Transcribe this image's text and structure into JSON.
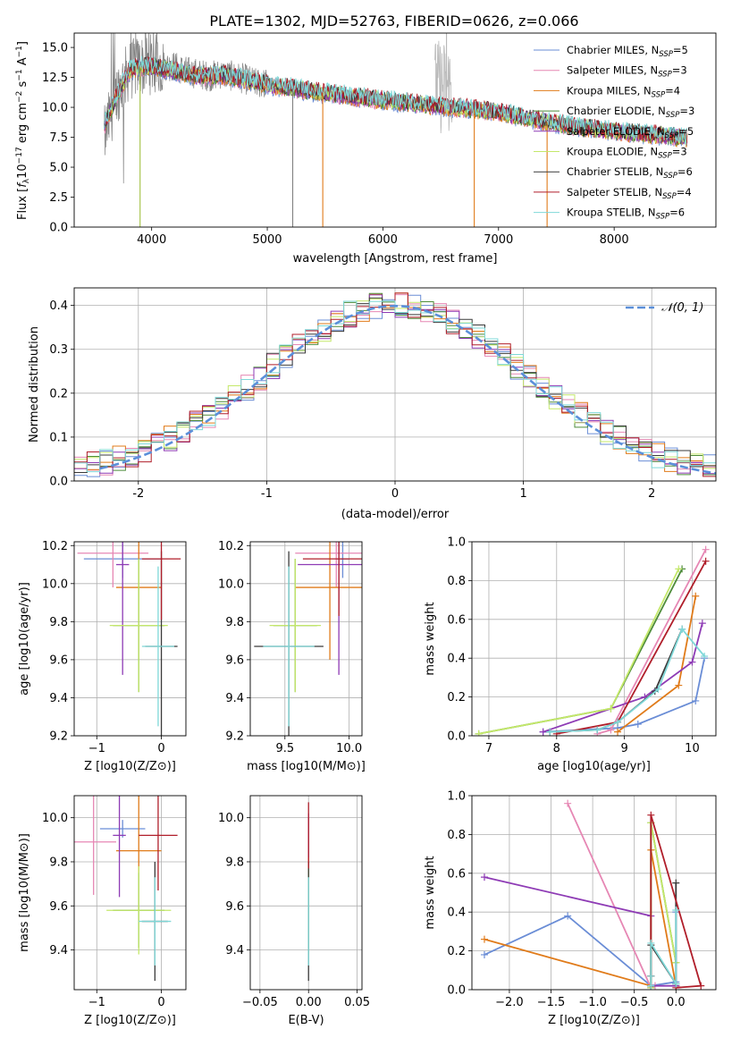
{
  "figure": {
    "title": "PLATE=1302, MJD=52763, FIBERID=0626, z=0.066"
  },
  "legend_labels": [
    "Chabrier MILES, N_SSP=5",
    "Salpeter MILES, N_SSP=3",
    "Kroupa MILES, N_SSP=4",
    "Chabrier ELODIE, N_SSP=3",
    "Salpeter ELODIE, N_SSP=5",
    "Kroupa ELODIE, N_SSP=3",
    "Chabrier STELIB, N_SSP=6",
    "Salpeter STELIB, N_SSP=4",
    "Kroupa STELIB, N_SSP=6"
  ],
  "colors": [
    "#6a8dd6",
    "#e687b4",
    "#e07b1a",
    "#4e8c3a",
    "#8e3bb5",
    "#c4e86a",
    "#3a3a3a",
    "#b01e2a",
    "#7fd8d8"
  ],
  "chart_data": [
    {
      "id": "spectrum",
      "type": "line",
      "title": "PLATE=1302, MJD=52763, FIBERID=0626, z=0.066",
      "xlabel": "wavelength [Angstrom, rest frame]",
      "ylabel": "Flux [f_λ 10^-17 erg cm^-2 s^-1 A^-1]",
      "xlim": [
        3330,
        8880
      ],
      "ylim": [
        0,
        16.2
      ],
      "xticks": [
        4000,
        5000,
        6000,
        7000,
        8000
      ],
      "yticks": [
        0.0,
        2.5,
        5.0,
        7.5,
        10.0,
        12.5,
        15.0
      ],
      "ytick_labels": [
        "0.0",
        "2.5",
        "5.0",
        "7.5",
        "10.0",
        "12.5",
        "15.0"
      ],
      "grid": false,
      "legend": "top-right",
      "data_continuum": {
        "x": [
          3590,
          3700,
          3800,
          3900,
          4000,
          4100,
          4200,
          4300,
          4400,
          4500,
          4600,
          4700,
          4800,
          4900,
          5000,
          5200,
          5400,
          5600,
          5800,
          6000,
          6200,
          6400,
          6600,
          6800,
          7000,
          7200,
          7400,
          7600,
          7800,
          8000,
          8200,
          8400,
          8600
        ],
        "y": [
          7.5,
          11.2,
          13.0,
          13.5,
          13.6,
          13.5,
          13.4,
          13.0,
          12.8,
          12.6,
          12.8,
          12.6,
          12.4,
          12.0,
          12.0,
          11.6,
          11.2,
          11.0,
          10.8,
          10.6,
          10.4,
          10.2,
          10.0,
          9.8,
          9.6,
          9.0,
          8.7,
          8.5,
          8.3,
          8.1,
          7.9,
          7.8,
          7.5
        ]
      },
      "model_continuum": {
        "x": [
          3590,
          3700,
          3800,
          3900,
          4000,
          4200,
          4400,
          4600,
          4800,
          5000,
          5500,
          6000,
          6500,
          7000,
          7500,
          8000,
          8500,
          8600
        ],
        "y": [
          8.5,
          11.0,
          13.0,
          13.4,
          13.4,
          13.0,
          12.6,
          12.7,
          12.3,
          11.9,
          11.2,
          10.6,
          10.1,
          9.6,
          8.6,
          8.0,
          7.6,
          7.4
        ]
      },
      "spikes": [
        {
          "x": 3900,
          "y": 0.0
        },
        {
          "x": 5220,
          "y": 0.0
        },
        {
          "x": 5480,
          "y": 0.0
        },
        {
          "x": 6790,
          "y": 0.0
        },
        {
          "x": 7420,
          "y": 0.0
        },
        {
          "x": 6550,
          "y": 16.2
        }
      ]
    },
    {
      "id": "residuals",
      "type": "area",
      "xlabel": "(data-model)/error",
      "ylabel": "Normed distribution",
      "xlim": [
        -2.5,
        2.5
      ],
      "ylim": [
        0,
        0.44
      ],
      "xticks": [
        -2,
        -1,
        0,
        1,
        2
      ],
      "yticks": [
        0.0,
        0.1,
        0.2,
        0.3,
        0.4
      ],
      "ytick_labels": [
        "0.0",
        "0.1",
        "0.2",
        "0.3",
        "0.4"
      ],
      "grid": true,
      "legend": "top-right",
      "legend_label": "𝒩(0, 1)",
      "bin_width": 0.1
    },
    {
      "id": "age-vs-z",
      "type": "scatter",
      "xlabel": "Z [log10(Z/Z⊙)]",
      "ylabel": "age [log10(age/yr)]",
      "xlim": [
        -1.35,
        0.38
      ],
      "ylim": [
        9.2,
        10.22
      ],
      "xticks": [
        -1,
        0
      ],
      "xtick_labels": [
        "−1",
        "0"
      ],
      "yticks": [
        9.2,
        9.4,
        9.6,
        9.8,
        10.0,
        10.2
      ],
      "ytick_labels": [
        "9.2",
        "9.4",
        "9.6",
        "9.8",
        "10.0",
        "10.2"
      ],
      "grid": true,
      "points": [
        {
          "series": 0,
          "x": -0.6,
          "y": 10.13,
          "xerr": 0.6,
          "yerr": 0.1
        },
        {
          "series": 1,
          "x": -0.75,
          "y": 10.16,
          "xerr": 0.55,
          "yerr": 0.18
        },
        {
          "series": 2,
          "x": -0.35,
          "y": 9.98,
          "xerr": 0.35,
          "yerr": 0.38
        },
        {
          "series": 3,
          "x": -0.35,
          "y": 9.78,
          "xerr": 0.4,
          "yerr": 0.35
        },
        {
          "series": 4,
          "x": -0.6,
          "y": 10.1,
          "xerr": 0.1,
          "yerr": 0.58
        },
        {
          "series": 5,
          "x": -0.35,
          "y": 9.78,
          "xerr": 0.45,
          "yerr": 0.35
        },
        {
          "series": 6,
          "x": 0.0,
          "y": 9.67,
          "xerr": 0.25,
          "yerr": 0.5
        },
        {
          "series": 7,
          "x": 0.0,
          "y": 10.13,
          "xerr": 0.3,
          "yerr": 0.32
        },
        {
          "series": 8,
          "x": -0.05,
          "y": 9.67,
          "xerr": 0.25,
          "yerr": 0.42
        }
      ]
    },
    {
      "id": "age-vs-mass",
      "type": "scatter",
      "xlabel": "mass [log10(M/M⊙)]",
      "xlim": [
        9.23,
        10.1
      ],
      "ylim": [
        9.2,
        10.22
      ],
      "xticks": [
        9.5,
        10.0
      ],
      "xtick_labels": [
        "9.5",
        "10.0"
      ],
      "yticks": [
        9.2,
        9.4,
        9.6,
        9.8,
        10.0,
        10.2
      ],
      "ytick_labels": [
        "9.2",
        "9.4",
        "9.6",
        "9.8",
        "10.0",
        "10.2"
      ],
      "grid": true,
      "points": [
        {
          "series": 0,
          "x": 9.95,
          "y": 10.13,
          "xerr": 0.05,
          "yerr": 0.1
        },
        {
          "series": 1,
          "x": 9.9,
          "y": 10.16,
          "xerr": 0.32,
          "yerr": 0.18
        },
        {
          "series": 2,
          "x": 9.85,
          "y": 9.98,
          "xerr": 0.27,
          "yerr": 0.38
        },
        {
          "series": 3,
          "x": 9.58,
          "y": 9.78,
          "xerr": 0.17,
          "yerr": 0.35
        },
        {
          "series": 4,
          "x": 9.92,
          "y": 10.1,
          "xerr": 0.32,
          "yerr": 0.58
        },
        {
          "series": 5,
          "x": 9.58,
          "y": 9.78,
          "xerr": 0.2,
          "yerr": 0.35
        },
        {
          "series": 6,
          "x": 9.53,
          "y": 9.67,
          "xerr": 0.27,
          "yerr": 0.5
        },
        {
          "series": 7,
          "x": 9.92,
          "y": 10.13,
          "xerr": 0.28,
          "yerr": 0.3
        },
        {
          "series": 8,
          "x": 9.53,
          "y": 9.67,
          "xerr": 0.2,
          "yerr": 0.42
        }
      ]
    },
    {
      "id": "mass-weight-vs-age",
      "type": "line",
      "xlabel": "age [log10(age/yr)]",
      "ylabel": "mass weight",
      "xlim": [
        6.75,
        10.35
      ],
      "ylim": [
        0,
        1.0
      ],
      "xticks": [
        7,
        8,
        9,
        10
      ],
      "yticks": [
        0.0,
        0.2,
        0.4,
        0.6,
        0.8,
        1.0
      ],
      "ytick_labels": [
        "0.0",
        "0.2",
        "0.4",
        "0.6",
        "0.8",
        "1.0"
      ],
      "grid": true,
      "series": [
        {
          "x": [
            7.8,
            8.9,
            9.2,
            10.05,
            10.18
          ],
          "y": [
            0.02,
            0.04,
            0.06,
            0.18,
            0.4
          ]
        },
        {
          "x": [
            8.6,
            8.8,
            10.2
          ],
          "y": [
            0.01,
            0.03,
            0.96
          ]
        },
        {
          "x": [
            8.9,
            9.8,
            10.05
          ],
          "y": [
            0.02,
            0.26,
            0.72
          ]
        },
        {
          "x": [
            6.85,
            8.8,
            9.85
          ],
          "y": [
            0.01,
            0.14,
            0.86
          ]
        },
        {
          "x": [
            7.8,
            9.3,
            10.0,
            10.15
          ],
          "y": [
            0.02,
            0.2,
            0.38,
            0.58
          ]
        },
        {
          "x": [
            6.85,
            8.8,
            9.8
          ],
          "y": [
            0.01,
            0.14,
            0.86
          ]
        },
        {
          "x": [
            7.9,
            8.6,
            8.9,
            9.45,
            9.85
          ],
          "y": [
            0.02,
            0.03,
            0.07,
            0.23,
            0.55
          ]
        },
        {
          "x": [
            8.0,
            8.9,
            10.2
          ],
          "y": [
            0.01,
            0.07,
            0.9
          ]
        },
        {
          "x": [
            7.9,
            8.6,
            8.9,
            9.5,
            9.85,
            10.18
          ],
          "y": [
            0.02,
            0.03,
            0.07,
            0.24,
            0.55,
            0.41
          ]
        }
      ]
    },
    {
      "id": "mass-vs-z",
      "type": "scatter",
      "xlabel": "Z [log10(Z/Z⊙)]",
      "ylabel": "mass [log10(M/M⊙)]",
      "xlim": [
        -1.35,
        0.38
      ],
      "ylim": [
        9.22,
        10.1
      ],
      "xticks": [
        -1,
        0
      ],
      "xtick_labels": [
        "−1",
        "0"
      ],
      "yticks": [
        9.4,
        9.6,
        9.8,
        10.0
      ],
      "ytick_labels": [
        "9.4",
        "9.6",
        "9.8",
        "10.0"
      ],
      "grid": true,
      "points": [
        {
          "series": 0,
          "x": -0.6,
          "y": 9.95,
          "xerr": 0.35,
          "yerr": 0.04
        },
        {
          "series": 1,
          "x": -1.05,
          "y": 9.89,
          "xerr": 0.35,
          "yerr": 0.24
        },
        {
          "series": 2,
          "x": -0.35,
          "y": 9.85,
          "xerr": 0.35,
          "yerr": 0.27
        },
        {
          "series": 3,
          "x": -0.35,
          "y": 9.58,
          "xerr": 0.4,
          "yerr": 0.17
        },
        {
          "series": 4,
          "x": -0.65,
          "y": 9.92,
          "xerr": 0.1,
          "yerr": 0.28
        },
        {
          "series": 5,
          "x": -0.35,
          "y": 9.58,
          "xerr": 0.5,
          "yerr": 0.2
        },
        {
          "series": 6,
          "x": -0.1,
          "y": 9.53,
          "xerr": 0.2,
          "yerr": 0.27
        },
        {
          "series": 7,
          "x": -0.05,
          "y": 9.92,
          "xerr": 0.3,
          "yerr": 0.25
        },
        {
          "series": 8,
          "x": -0.1,
          "y": 9.53,
          "xerr": 0.25,
          "yerr": 0.2
        }
      ]
    },
    {
      "id": "mass-vs-ebv",
      "type": "scatter",
      "xlabel": "E(B-V)",
      "xlim": [
        -0.06,
        0.055
      ],
      "ylim": [
        9.22,
        10.1
      ],
      "xticks": [
        -0.05,
        0.0,
        0.05
      ],
      "xtick_labels": [
        "−0.05",
        "0.00",
        "0.05"
      ],
      "yticks": [
        9.4,
        9.6,
        9.8,
        10.0
      ],
      "ytick_labels": [
        "9.4",
        "9.6",
        "9.8",
        "10.0"
      ],
      "grid": true,
      "points": [
        {
          "series": 0,
          "x": 0.0,
          "y": 9.95,
          "xerr": 0,
          "yerr": 0.04
        },
        {
          "series": 1,
          "x": 0.0,
          "y": 9.89,
          "xerr": 0,
          "yerr": 0.1
        },
        {
          "series": 2,
          "x": 0.0,
          "y": 9.85,
          "xerr": 0,
          "yerr": 0.15
        },
        {
          "series": 3,
          "x": 0.0,
          "y": 9.58,
          "xerr": 0,
          "yerr": 0.17
        },
        {
          "series": 4,
          "x": 0.0,
          "y": 9.92,
          "xerr": 0,
          "yerr": 0.1
        },
        {
          "series": 5,
          "x": 0.0,
          "y": 9.58,
          "xerr": 0,
          "yerr": 0.2
        },
        {
          "series": 6,
          "x": 0.0,
          "y": 9.53,
          "xerr": 0,
          "yerr": 0.27
        },
        {
          "series": 7,
          "x": 0.0,
          "y": 9.92,
          "xerr": 0,
          "yerr": 0.15
        },
        {
          "series": 8,
          "x": 0.0,
          "y": 9.53,
          "xerr": 0,
          "yerr": 0.2
        }
      ]
    },
    {
      "id": "mass-weight-vs-z",
      "type": "line",
      "xlabel": "Z [log10(Z/Z⊙)]",
      "ylabel": "mass weight",
      "xlim": [
        -2.45,
        0.48
      ],
      "ylim": [
        0,
        1.0
      ],
      "xticks": [
        -2.0,
        -1.5,
        -1.0,
        -0.5,
        0.0
      ],
      "xtick_labels": [
        "−2.0",
        "−1.5",
        "−1.0",
        "−0.5",
        "0.0"
      ],
      "yticks": [
        0.0,
        0.2,
        0.4,
        0.6,
        0.8,
        1.0
      ],
      "ytick_labels": [
        "0.0",
        "0.2",
        "0.4",
        "0.6",
        "0.8",
        "1.0"
      ],
      "grid": true,
      "series": [
        {
          "x": [
            -2.3,
            -1.3,
            -0.3,
            0.0,
            0.0
          ],
          "y": [
            0.18,
            0.38,
            0.02,
            0.04,
            0.4
          ]
        },
        {
          "x": [
            -1.3,
            -0.3,
            -0.25
          ],
          "y": [
            0.96,
            0.01,
            0.02
          ]
        },
        {
          "x": [
            -2.3,
            -0.3,
            -0.3,
            0.0
          ],
          "y": [
            0.26,
            0.02,
            0.72,
            0.02
          ]
        },
        {
          "x": [
            -0.3,
            -0.3,
            0.0
          ],
          "y": [
            0.01,
            0.86,
            0.14
          ]
        },
        {
          "x": [
            -2.3,
            -0.3,
            -0.3,
            0.0
          ],
          "y": [
            0.58,
            0.38,
            0.02,
            0.02
          ]
        },
        {
          "x": [
            -0.3,
            -0.3,
            0.0
          ],
          "y": [
            0.01,
            0.86,
            0.14
          ]
        },
        {
          "x": [
            -0.3,
            -0.3,
            -0.3,
            0.0,
            0.0
          ],
          "y": [
            0.02,
            0.07,
            0.23,
            0.03,
            0.55
          ]
        },
        {
          "x": [
            -0.3,
            -0.3,
            0.3,
            0.0
          ],
          "y": [
            0.07,
            0.9,
            0.02,
            0.01
          ]
        },
        {
          "x": [
            -0.3,
            -0.3,
            -0.3,
            0.0,
            0.0
          ],
          "y": [
            0.02,
            0.07,
            0.24,
            0.03,
            0.41
          ]
        }
      ]
    }
  ]
}
